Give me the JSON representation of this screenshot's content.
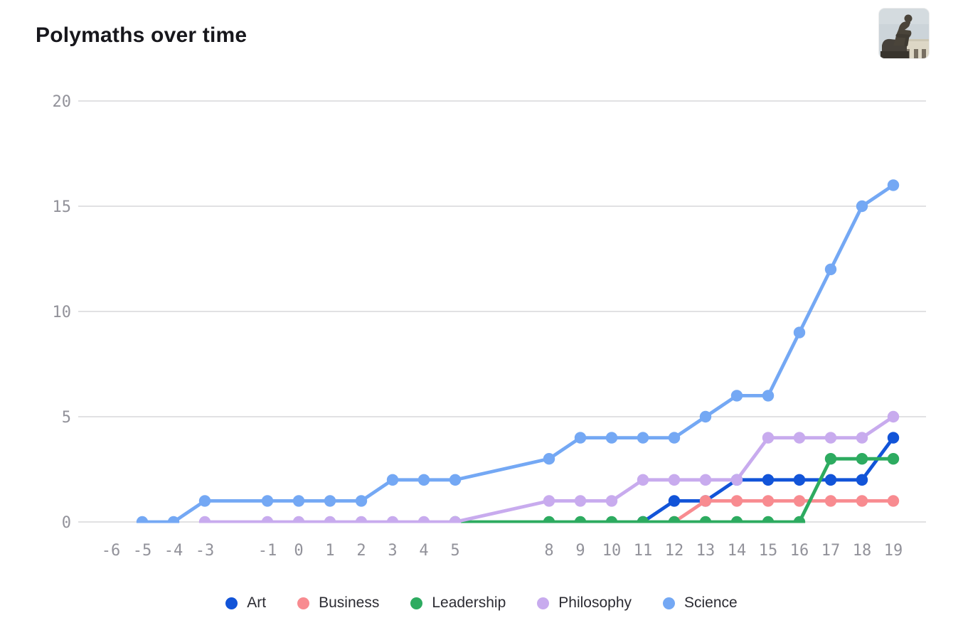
{
  "images": {
    "top_right_photo": "the-thinker-statue"
  },
  "chart_data": {
    "type": "line",
    "title": "Polymaths over time",
    "xlabel": "",
    "ylabel": "",
    "grid": "horizontal-only",
    "legend_position": "bottom-center",
    "x_axis": {
      "ticks": [
        {
          "value": -6,
          "label": "-6"
        },
        {
          "value": -5,
          "label": "-5"
        },
        {
          "value": -4,
          "label": "-4"
        },
        {
          "value": -3,
          "label": "-3"
        },
        {
          "value": -1,
          "label": "-1"
        },
        {
          "value": 0,
          "label": "0"
        },
        {
          "value": 1,
          "label": "1"
        },
        {
          "value": 2,
          "label": "2"
        },
        {
          "value": 3,
          "label": "3"
        },
        {
          "value": 4,
          "label": "4"
        },
        {
          "value": 5,
          "label": "5"
        },
        {
          "value": 8,
          "label": "8"
        },
        {
          "value": 9,
          "label": "9"
        },
        {
          "value": 10,
          "label": "10"
        },
        {
          "value": 11,
          "label": "11"
        },
        {
          "value": 12,
          "label": "12"
        },
        {
          "value": 13,
          "label": "13"
        },
        {
          "value": 14,
          "label": "14"
        },
        {
          "value": 15,
          "label": "15"
        },
        {
          "value": 16,
          "label": "16"
        },
        {
          "value": 17,
          "label": "17"
        },
        {
          "value": 18,
          "label": "18"
        },
        {
          "value": 19,
          "label": "19"
        }
      ]
    },
    "y_axis": {
      "ticks": [
        0,
        5,
        10,
        15,
        20
      ],
      "range": [
        0,
        20
      ]
    },
    "series": [
      {
        "name": "Art",
        "color": "#1254d8",
        "points": [
          [
            11,
            0
          ],
          [
            12,
            1
          ],
          [
            13,
            1
          ],
          [
            14,
            2
          ],
          [
            15,
            2
          ],
          [
            16,
            2
          ],
          [
            17,
            2
          ],
          [
            18,
            2
          ],
          [
            19,
            4
          ]
        ]
      },
      {
        "name": "Business",
        "color": "#f88b90",
        "points": [
          [
            12,
            0
          ],
          [
            13,
            1
          ],
          [
            14,
            1
          ],
          [
            15,
            1
          ],
          [
            16,
            1
          ],
          [
            17,
            1
          ],
          [
            18,
            1
          ],
          [
            19,
            1
          ]
        ]
      },
      {
        "name": "Leadership",
        "color": "#2dab60",
        "points": [
          [
            5,
            0
          ],
          [
            8,
            0
          ],
          [
            9,
            0
          ],
          [
            10,
            0
          ],
          [
            11,
            0
          ],
          [
            12,
            0
          ],
          [
            13,
            0
          ],
          [
            14,
            0
          ],
          [
            15,
            0
          ],
          [
            16,
            0
          ],
          [
            17,
            3
          ],
          [
            18,
            3
          ],
          [
            19,
            3
          ]
        ]
      },
      {
        "name": "Philosophy",
        "color": "#c8abee",
        "points": [
          [
            -3,
            0
          ],
          [
            -1,
            0
          ],
          [
            0,
            0
          ],
          [
            1,
            0
          ],
          [
            2,
            0
          ],
          [
            3,
            0
          ],
          [
            4,
            0
          ],
          [
            5,
            0
          ],
          [
            8,
            1
          ],
          [
            9,
            1
          ],
          [
            10,
            1
          ],
          [
            11,
            2
          ],
          [
            12,
            2
          ],
          [
            13,
            2
          ],
          [
            14,
            2
          ],
          [
            15,
            4
          ],
          [
            16,
            4
          ],
          [
            17,
            4
          ],
          [
            18,
            4
          ],
          [
            19,
            5
          ]
        ]
      },
      {
        "name": "Science",
        "color": "#74a8f4",
        "points": [
          [
            -5,
            0
          ],
          [
            -4,
            0
          ],
          [
            -3,
            1
          ],
          [
            -1,
            1
          ],
          [
            0,
            1
          ],
          [
            1,
            1
          ],
          [
            2,
            1
          ],
          [
            3,
            2
          ],
          [
            4,
            2
          ],
          [
            5,
            2
          ],
          [
            8,
            3
          ],
          [
            9,
            4
          ],
          [
            10,
            4
          ],
          [
            11,
            4
          ],
          [
            12,
            4
          ],
          [
            13,
            5
          ],
          [
            14,
            6
          ],
          [
            15,
            6
          ],
          [
            16,
            9
          ],
          [
            17,
            12
          ],
          [
            18,
            15
          ],
          [
            19,
            16
          ]
        ]
      }
    ]
  }
}
